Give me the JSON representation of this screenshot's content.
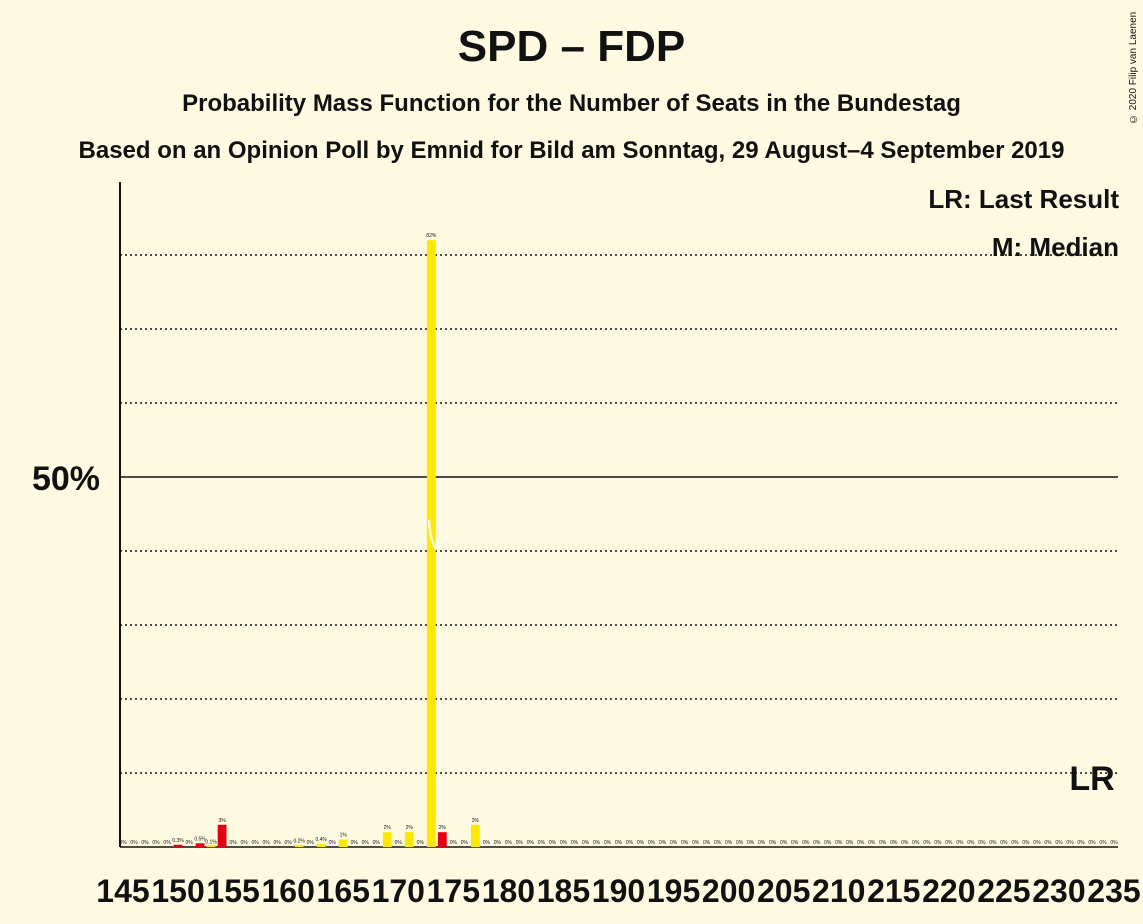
{
  "title": "SPD – FDP",
  "subtitle": "Probability Mass Function for the Number of Seats in the Bundestag",
  "subtitle2": "Based on an Opinion Poll by Emnid for Bild am Sonntag, 29 August–4 September 2019",
  "copyright": "© 2020 Filip van Laenen",
  "legend": {
    "lr": "LR: Last Result",
    "m": "M: Median"
  },
  "colors": {
    "background": "#fefae2",
    "primary": "#ffe800",
    "secondary": "#e3000f"
  },
  "chart_data": {
    "type": "bar",
    "xlim": [
      145,
      235
    ],
    "ylim": [
      0,
      90
    ],
    "majority_line_label": "50%",
    "majority_line_value": 50,
    "gridlines": [
      10,
      20,
      30,
      40,
      60,
      70,
      80
    ],
    "xticks": [
      145,
      150,
      155,
      160,
      165,
      170,
      175,
      180,
      185,
      190,
      195,
      200,
      205,
      210,
      215,
      220,
      225,
      230,
      235
    ],
    "last_result": {
      "seat": 233,
      "label": "LR"
    },
    "median_seat": 173,
    "bars": [
      {
        "seat": 145,
        "value": 0,
        "label": "0%",
        "color": "primary"
      },
      {
        "seat": 146,
        "value": 0,
        "label": "0%",
        "color": "primary"
      },
      {
        "seat": 147,
        "value": 0,
        "label": "0%",
        "color": "primary"
      },
      {
        "seat": 148,
        "value": 0,
        "label": "0%",
        "color": "primary"
      },
      {
        "seat": 149,
        "value": 0,
        "label": "0%",
        "color": "primary"
      },
      {
        "seat": 150,
        "value": 0.3,
        "label": "0.3%",
        "color": "secondary"
      },
      {
        "seat": 151,
        "value": 0,
        "label": "0%",
        "color": "primary"
      },
      {
        "seat": 152,
        "value": 0.5,
        "label": "0.5%",
        "color": "secondary"
      },
      {
        "seat": 153,
        "value": 0.1,
        "label": "0.1%",
        "color": "primary"
      },
      {
        "seat": 154,
        "value": 3,
        "label": "3%",
        "color": "secondary"
      },
      {
        "seat": 155,
        "value": 0,
        "label": "0%",
        "color": "primary"
      },
      {
        "seat": 156,
        "value": 0,
        "label": "0%",
        "color": "primary"
      },
      {
        "seat": 157,
        "value": 0,
        "label": "0%",
        "color": "primary"
      },
      {
        "seat": 158,
        "value": 0,
        "label": "0%",
        "color": "primary"
      },
      {
        "seat": 159,
        "value": 0,
        "label": "0%",
        "color": "primary"
      },
      {
        "seat": 160,
        "value": 0,
        "label": "0%",
        "color": "primary"
      },
      {
        "seat": 161,
        "value": 0.2,
        "label": "0.2%",
        "color": "primary"
      },
      {
        "seat": 162,
        "value": 0,
        "label": "0%",
        "color": "primary"
      },
      {
        "seat": 163,
        "value": 0.4,
        "label": "0.4%",
        "color": "primary"
      },
      {
        "seat": 164,
        "value": 0,
        "label": "0%",
        "color": "primary"
      },
      {
        "seat": 165,
        "value": 1,
        "label": "1%",
        "color": "primary"
      },
      {
        "seat": 166,
        "value": 0,
        "label": "0%",
        "color": "primary"
      },
      {
        "seat": 167,
        "value": 0,
        "label": "0%",
        "color": "primary"
      },
      {
        "seat": 168,
        "value": 0,
        "label": "0%",
        "color": "primary"
      },
      {
        "seat": 169,
        "value": 2,
        "label": "2%",
        "color": "primary"
      },
      {
        "seat": 170,
        "value": 0,
        "label": "0%",
        "color": "primary"
      },
      {
        "seat": 171,
        "value": 2,
        "label": "2%",
        "color": "primary"
      },
      {
        "seat": 172,
        "value": 0,
        "label": "0%",
        "color": "primary"
      },
      {
        "seat": 173,
        "value": 82,
        "label": "82%",
        "color": "primary"
      },
      {
        "seat": 174,
        "value": 2,
        "label": "2%",
        "color": "secondary"
      },
      {
        "seat": 175,
        "value": 0,
        "label": "0%",
        "color": "primary"
      },
      {
        "seat": 176,
        "value": 0,
        "label": "0%",
        "color": "primary"
      },
      {
        "seat": 177,
        "value": 3,
        "label": "3%",
        "color": "primary"
      },
      {
        "seat": 178,
        "value": 0,
        "label": "0%",
        "color": "primary"
      },
      {
        "seat": 179,
        "value": 0,
        "label": "0%",
        "color": "primary"
      },
      {
        "seat": 180,
        "value": 0,
        "label": "0%",
        "color": "primary"
      },
      {
        "seat": 181,
        "value": 0,
        "label": "0%",
        "color": "primary"
      },
      {
        "seat": 182,
        "value": 0,
        "label": "0%",
        "color": "primary"
      },
      {
        "seat": 183,
        "value": 0,
        "label": "0%",
        "color": "primary"
      },
      {
        "seat": 184,
        "value": 0,
        "label": "0%",
        "color": "primary"
      },
      {
        "seat": 185,
        "value": 0,
        "label": "0%",
        "color": "primary"
      },
      {
        "seat": 186,
        "value": 0,
        "label": "0%",
        "color": "primary"
      },
      {
        "seat": 187,
        "value": 0,
        "label": "0%",
        "color": "primary"
      },
      {
        "seat": 188,
        "value": 0,
        "label": "0%",
        "color": "primary"
      },
      {
        "seat": 189,
        "value": 0,
        "label": "0%",
        "color": "primary"
      },
      {
        "seat": 190,
        "value": 0,
        "label": "0%",
        "color": "primary"
      },
      {
        "seat": 191,
        "value": 0,
        "label": "0%",
        "color": "primary"
      },
      {
        "seat": 192,
        "value": 0,
        "label": "0%",
        "color": "primary"
      },
      {
        "seat": 193,
        "value": 0,
        "label": "0%",
        "color": "primary"
      },
      {
        "seat": 194,
        "value": 0,
        "label": "0%",
        "color": "primary"
      },
      {
        "seat": 195,
        "value": 0,
        "label": "0%",
        "color": "primary"
      },
      {
        "seat": 196,
        "value": 0,
        "label": "0%",
        "color": "primary"
      },
      {
        "seat": 197,
        "value": 0,
        "label": "0%",
        "color": "primary"
      },
      {
        "seat": 198,
        "value": 0,
        "label": "0%",
        "color": "primary"
      },
      {
        "seat": 199,
        "value": 0,
        "label": "0%",
        "color": "primary"
      },
      {
        "seat": 200,
        "value": 0,
        "label": "0%",
        "color": "primary"
      },
      {
        "seat": 201,
        "value": 0,
        "label": "0%",
        "color": "primary"
      },
      {
        "seat": 202,
        "value": 0,
        "label": "0%",
        "color": "primary"
      },
      {
        "seat": 203,
        "value": 0,
        "label": "0%",
        "color": "primary"
      },
      {
        "seat": 204,
        "value": 0,
        "label": "0%",
        "color": "primary"
      },
      {
        "seat": 205,
        "value": 0,
        "label": "0%",
        "color": "primary"
      },
      {
        "seat": 206,
        "value": 0,
        "label": "0%",
        "color": "primary"
      },
      {
        "seat": 207,
        "value": 0,
        "label": "0%",
        "color": "primary"
      },
      {
        "seat": 208,
        "value": 0,
        "label": "0%",
        "color": "primary"
      },
      {
        "seat": 209,
        "value": 0,
        "label": "0%",
        "color": "primary"
      },
      {
        "seat": 210,
        "value": 0,
        "label": "0%",
        "color": "primary"
      },
      {
        "seat": 211,
        "value": 0,
        "label": "0%",
        "color": "primary"
      },
      {
        "seat": 212,
        "value": 0,
        "label": "0%",
        "color": "primary"
      },
      {
        "seat": 213,
        "value": 0,
        "label": "0%",
        "color": "primary"
      },
      {
        "seat": 214,
        "value": 0,
        "label": "0%",
        "color": "primary"
      },
      {
        "seat": 215,
        "value": 0,
        "label": "0%",
        "color": "primary"
      },
      {
        "seat": 216,
        "value": 0,
        "label": "0%",
        "color": "primary"
      },
      {
        "seat": 217,
        "value": 0,
        "label": "0%",
        "color": "primary"
      },
      {
        "seat": 218,
        "value": 0,
        "label": "0%",
        "color": "primary"
      },
      {
        "seat": 219,
        "value": 0,
        "label": "0%",
        "color": "primary"
      },
      {
        "seat": 220,
        "value": 0,
        "label": "0%",
        "color": "primary"
      },
      {
        "seat": 221,
        "value": 0,
        "label": "0%",
        "color": "primary"
      },
      {
        "seat": 222,
        "value": 0,
        "label": "0%",
        "color": "primary"
      },
      {
        "seat": 223,
        "value": 0,
        "label": "0%",
        "color": "primary"
      },
      {
        "seat": 224,
        "value": 0,
        "label": "0%",
        "color": "primary"
      },
      {
        "seat": 225,
        "value": 0,
        "label": "0%",
        "color": "primary"
      },
      {
        "seat": 226,
        "value": 0,
        "label": "0%",
        "color": "primary"
      },
      {
        "seat": 227,
        "value": 0,
        "label": "0%",
        "color": "primary"
      },
      {
        "seat": 228,
        "value": 0,
        "label": "0%",
        "color": "primary"
      },
      {
        "seat": 229,
        "value": 0,
        "label": "0%",
        "color": "primary"
      },
      {
        "seat": 230,
        "value": 0,
        "label": "0%",
        "color": "primary"
      },
      {
        "seat": 231,
        "value": 0,
        "label": "0%",
        "color": "primary"
      },
      {
        "seat": 232,
        "value": 0,
        "label": "0%",
        "color": "primary"
      },
      {
        "seat": 233,
        "value": 0,
        "label": "0%",
        "color": "primary"
      },
      {
        "seat": 234,
        "value": 0,
        "label": "0%",
        "color": "primary"
      },
      {
        "seat": 235,
        "value": 0,
        "label": "0%",
        "color": "primary"
      }
    ]
  }
}
